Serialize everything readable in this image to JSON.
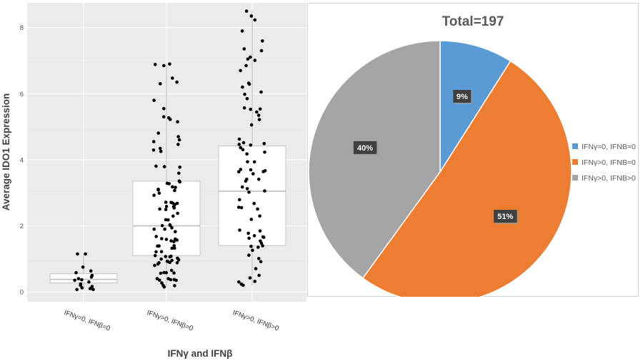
{
  "chart_data": [
    {
      "type": "box",
      "xlabel": "IFNγ and IFNβ",
      "ylabel": "Average IDO1 Expression",
      "ylim": [
        -0.3,
        8.75
      ],
      "yticks": [
        0,
        2,
        4,
        6,
        8
      ],
      "yticks_labels": [
        "0",
        "2",
        "4",
        "6",
        "8"
      ],
      "grid": true,
      "categories": [
        "IFNγ=0,  IFNβ=0",
        "IFNγ>0,  IFNβ=0",
        "IFNγ>0,  IFNβ>0"
      ],
      "boxes": [
        {
          "q1": 0.27,
          "median": 0.38,
          "q3": 0.55,
          "whisker_low": 0.07,
          "whisker_high": 1.15,
          "n_points": 18
        },
        {
          "q1": 1.1,
          "median": 2.0,
          "q3": 3.35,
          "whisker_low": 0.15,
          "whisker_high": 6.9,
          "n_points": 100
        },
        {
          "q1": 1.4,
          "median": 3.05,
          "q3": 4.42,
          "whisker_low": 0.2,
          "whisker_high": 8.5,
          "n_points": 79
        }
      ],
      "highlight_points": [
        [
          1.15,
          1.15,
          0.07,
          0.1,
          0.5,
          0.45,
          0.35,
          0.75,
          0.3,
          0.2,
          0.4
        ],
        [
          6.9,
          6.85,
          6.35,
          6.3,
          5.8,
          5.55,
          5.3,
          4.7,
          4.6,
          4.55,
          0.15,
          0.2
        ],
        [
          8.5,
          8.35,
          7.9,
          7.3,
          6.85,
          6.7,
          6.2,
          6.05,
          0.2,
          0.3,
          0.5
        ]
      ]
    },
    {
      "type": "pie",
      "title": "Total=197",
      "start_angle_deg": 0,
      "direction": "clockwise",
      "slices": [
        {
          "label": "IFNγ=0, IFNB=0",
          "value": 9,
          "display": "9%",
          "color": "#5b9bd5"
        },
        {
          "label": "IFNγ>0, IFNB=0",
          "value": 51,
          "display": "51%",
          "color": "#ed7d31"
        },
        {
          "label": "IFNγ>0, IFNB>0",
          "value": 40,
          "display": "40%",
          "color": "#a5a5a5"
        }
      ],
      "legend_position": "right"
    }
  ]
}
